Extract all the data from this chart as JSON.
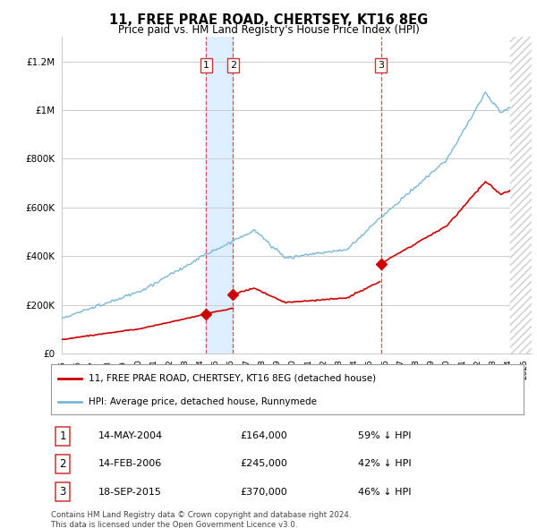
{
  "title": "11, FREE PRAE ROAD, CHERTSEY, KT16 8EG",
  "subtitle": "Price paid vs. HM Land Registry's House Price Index (HPI)",
  "ylim": [
    0,
    1300000
  ],
  "yticks": [
    0,
    200000,
    400000,
    600000,
    800000,
    1000000,
    1200000
  ],
  "x_start_year": 1995,
  "x_end_year": 2025,
  "hpi_color": "#7ab8d9",
  "price_color": "#cc0000",
  "transactions": [
    {
      "date": 2004.37,
      "price": 164000,
      "label": "1"
    },
    {
      "date": 2006.12,
      "price": 245000,
      "label": "2"
    },
    {
      "date": 2015.72,
      "price": 370000,
      "label": "3"
    }
  ],
  "vline_color": "#cc3333",
  "shade_between_12_color": "#ddeeff",
  "legend_house_label": "11, FREE PRAE ROAD, CHERTSEY, KT16 8EG (detached house)",
  "legend_hpi_label": "HPI: Average price, detached house, Runnymede",
  "table_rows": [
    {
      "num": "1",
      "date": "14-MAY-2004",
      "price": "£164,000",
      "pct": "59% ↓ HPI"
    },
    {
      "num": "2",
      "date": "14-FEB-2006",
      "price": "£245,000",
      "pct": "42% ↓ HPI"
    },
    {
      "num": "3",
      "date": "18-SEP-2015",
      "price": "£370,000",
      "pct": "46% ↓ HPI"
    }
  ],
  "footer": "Contains HM Land Registry data © Crown copyright and database right 2024.\nThis data is licensed under the Open Government Licence v3.0.",
  "background_color": "#ffffff",
  "grid_color": "#cccccc",
  "hatch_color": "#bbbbbb"
}
